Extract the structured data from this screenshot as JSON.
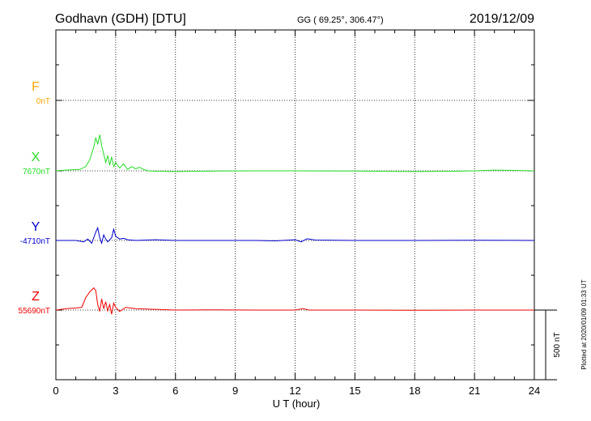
{
  "header": {
    "station": "Godhavn (GDH)  [DTU]",
    "coords": "GG ( 69.25°, 306.47°)",
    "date": "2019/12/09"
  },
  "side_note": "Plotted at 2020/01/09 01:33 UT",
  "scale_bar_label": "500 nT",
  "chart_data": {
    "type": "line",
    "xlabel": "U T (hour)",
    "xlim": [
      0,
      24
    ],
    "xticks": [
      "0",
      "3",
      "6",
      "9",
      "12",
      "15",
      "18",
      "21",
      "24"
    ],
    "grid": true,
    "scale_bar_nT": 500,
    "series": [
      {
        "name": "F",
        "baseline_label": "0nT",
        "color": "#ffa500",
        "points": []
      },
      {
        "name": "X",
        "baseline_label": "7670nT",
        "color": "#22dd22",
        "points": [
          [
            0,
            0
          ],
          [
            0.5,
            5
          ],
          [
            1.2,
            10
          ],
          [
            1.5,
            30
          ],
          [
            1.7,
            80
          ],
          [
            1.9,
            170
          ],
          [
            2.0,
            240
          ],
          [
            2.1,
            190
          ],
          [
            2.2,
            260
          ],
          [
            2.3,
            180
          ],
          [
            2.4,
            120
          ],
          [
            2.5,
            60
          ],
          [
            2.6,
            110
          ],
          [
            2.7,
            40
          ],
          [
            2.8,
            100
          ],
          [
            2.9,
            30
          ],
          [
            3.0,
            60
          ],
          [
            3.2,
            20
          ],
          [
            3.4,
            50
          ],
          [
            3.6,
            10
          ],
          [
            3.8,
            30
          ],
          [
            4.0,
            15
          ],
          [
            4.2,
            25
          ],
          [
            4.4,
            10
          ],
          [
            4.6,
            0
          ],
          [
            5.0,
            -3
          ],
          [
            6,
            -5
          ],
          [
            8,
            -2
          ],
          [
            10,
            0
          ],
          [
            12,
            0
          ],
          [
            15,
            -2
          ],
          [
            18,
            -5
          ],
          [
            20,
            -3
          ],
          [
            21,
            0
          ],
          [
            22,
            5
          ],
          [
            24,
            0
          ]
        ]
      },
      {
        "name": "Y",
        "baseline_label": "-4710nT",
        "color": "#0000cc",
        "points": [
          [
            0,
            0
          ],
          [
            1.0,
            0
          ],
          [
            1.4,
            -10
          ],
          [
            1.6,
            10
          ],
          [
            1.8,
            -20
          ],
          [
            2.0,
            60
          ],
          [
            2.1,
            90
          ],
          [
            2.2,
            20
          ],
          [
            2.3,
            -20
          ],
          [
            2.4,
            40
          ],
          [
            2.5,
            10
          ],
          [
            2.6,
            -10
          ],
          [
            2.8,
            20
          ],
          [
            2.9,
            80
          ],
          [
            3.0,
            30
          ],
          [
            3.2,
            10
          ],
          [
            3.4,
            15
          ],
          [
            3.6,
            5
          ],
          [
            4,
            0
          ],
          [
            5,
            5
          ],
          [
            6,
            0
          ],
          [
            8,
            0
          ],
          [
            10,
            0
          ],
          [
            11,
            -3
          ],
          [
            12,
            5
          ],
          [
            12.3,
            -10
          ],
          [
            12.6,
            12
          ],
          [
            13,
            3
          ],
          [
            15,
            0
          ],
          [
            18,
            0
          ],
          [
            21,
            2
          ],
          [
            24,
            0
          ]
        ]
      },
      {
        "name": "Z",
        "baseline_label": "55690nT",
        "color": "#ee0000",
        "points": [
          [
            0,
            0
          ],
          [
            0.5,
            10
          ],
          [
            1.0,
            15
          ],
          [
            1.3,
            20
          ],
          [
            1.5,
            90
          ],
          [
            1.7,
            130
          ],
          [
            1.9,
            160
          ],
          [
            2.0,
            140
          ],
          [
            2.1,
            40
          ],
          [
            2.2,
            -10
          ],
          [
            2.3,
            80
          ],
          [
            2.4,
            10
          ],
          [
            2.5,
            60
          ],
          [
            2.6,
            -5
          ],
          [
            2.7,
            40
          ],
          [
            2.8,
            -30
          ],
          [
            2.9,
            50
          ],
          [
            3.0,
            20
          ],
          [
            3.2,
            -10
          ],
          [
            3.5,
            20
          ],
          [
            4,
            10
          ],
          [
            5,
            5
          ],
          [
            6,
            0
          ],
          [
            8,
            2
          ],
          [
            10,
            0
          ],
          [
            12,
            0
          ],
          [
            12.4,
            10
          ],
          [
            12.7,
            0
          ],
          [
            15,
            0
          ],
          [
            18,
            -2
          ],
          [
            21,
            0
          ],
          [
            24,
            0
          ]
        ]
      }
    ]
  }
}
